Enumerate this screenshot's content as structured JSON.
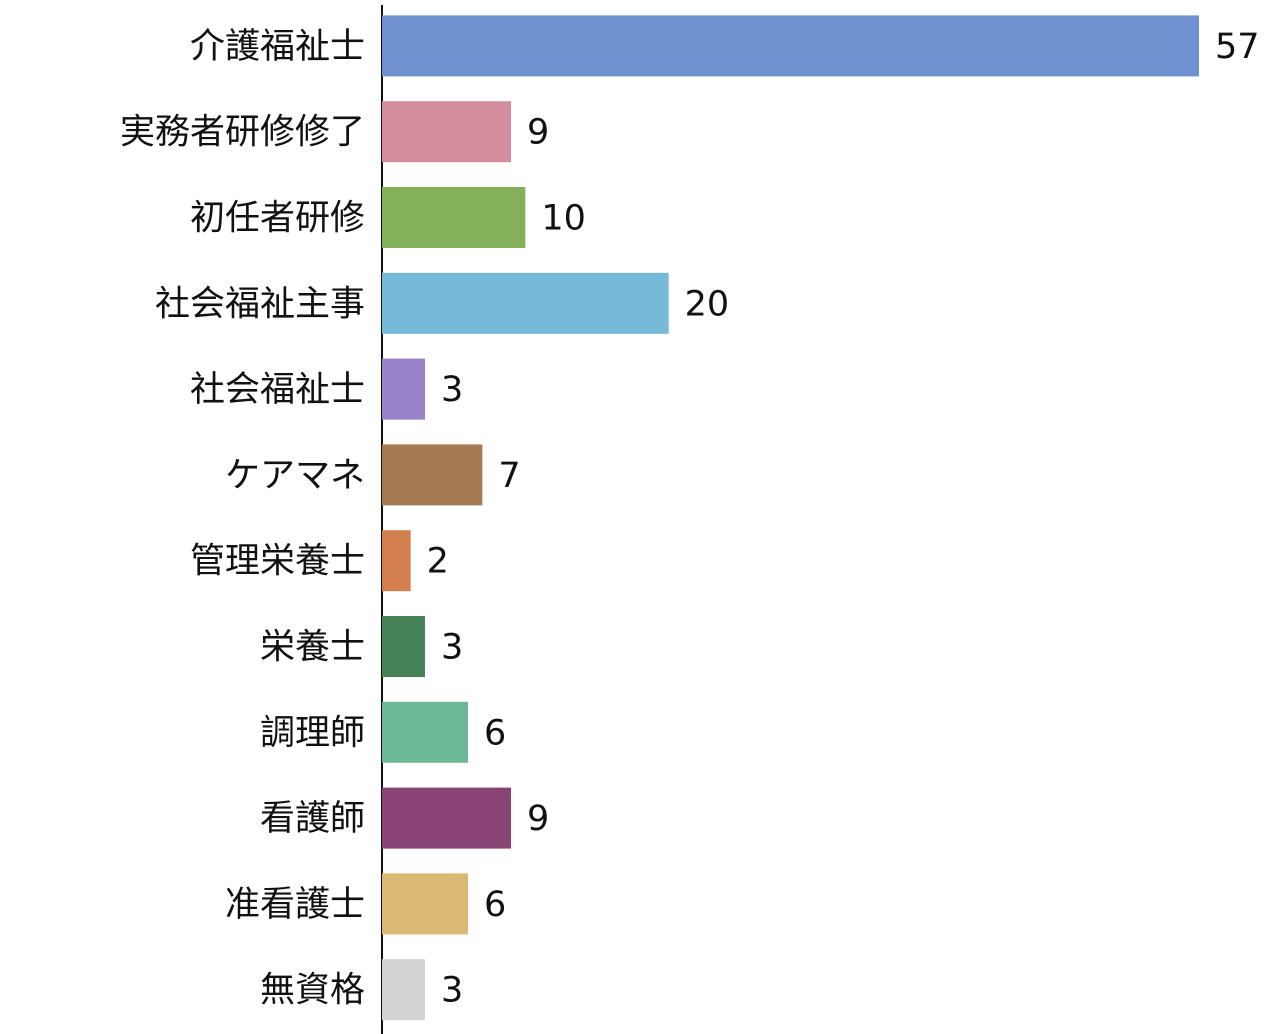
{
  "chart_data": {
    "type": "barh",
    "categories": [
      "介護福祉士",
      "実務者研修修了",
      "初任者研修",
      "社会福祉主事",
      "社会福祉士",
      "ケアマネ",
      "管理栄養士",
      "栄養士",
      "調理師",
      "看護師",
      "准看護士",
      "無資格"
    ],
    "values": [
      57,
      9,
      10,
      20,
      3,
      7,
      2,
      3,
      6,
      9,
      6,
      3
    ],
    "colors": [
      "#6f91cf",
      "#d38d9d",
      "#84b05a",
      "#76b9d9",
      "#9782c7",
      "#a67a55",
      "#d4804e",
      "#458057",
      "#6cb896",
      "#8a4375",
      "#dcb973",
      "#d3d3d3"
    ]
  }
}
